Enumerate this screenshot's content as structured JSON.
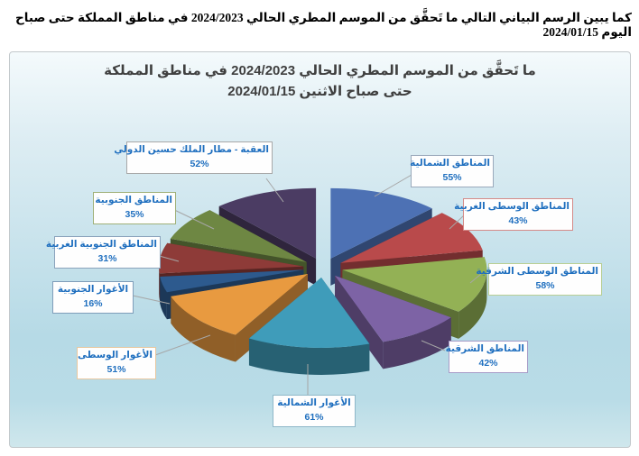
{
  "page": {
    "header": "كما يبين الرسم البياني التالي ما تَحقَّق من الموسم المطري الحالي 2024/2023 في مناطق المملكة حتى صباح اليوم 2024/01/15"
  },
  "chart": {
    "title_line1": "ما تَحقَّق من الموسم المطري الحالي 2024/2023 في مناطق المملكة",
    "title_line2": "حتى صباح الاثنين 2024/01/15",
    "title_color": "#3F3F3F"
  },
  "chart_data": {
    "type": "pie",
    "style": "3d-exploded",
    "title": "ما تَحقَّق من الموسم المطري الحالي 2024/2023 في مناطق المملكة حتى صباح الاثنين 2024/01/15",
    "unit": "%",
    "legend_position": "callout-labels",
    "categories": [
      "المناطق الشمالية",
      "المناطق الوسطى الغربية",
      "المناطق الوسطى الشرقية",
      "المناطق الشرقية",
      "الأغوار الشمالية",
      "الأغوار الوسطى",
      "الأغوار الجنوبية",
      "المناطق الجنوبية الغربية",
      "المناطق الجنوبية",
      "العقبة - مطار الملك حسين الدولي"
    ],
    "values": [
      55,
      43,
      58,
      42,
      61,
      51,
      16,
      31,
      35,
      52
    ],
    "value_labels": [
      "55%",
      "43%",
      "58%",
      "42%",
      "61%",
      "51%",
      "16%",
      "31%",
      "35%",
      "52%"
    ],
    "colors": [
      "#4D71B4",
      "#B94A4B",
      "#93B155",
      "#7D63A5",
      "#3F9CBA",
      "#E89A40",
      "#2D5A8E",
      "#8E3B38",
      "#6E8743",
      "#4B3C63"
    ],
    "callout_border_colors": [
      "#9AA9BB",
      "#D58A88",
      "#B9CF94",
      "#A79CC8",
      "#8FB8C9",
      "#E8C79E",
      "#7F9DB9",
      "#8BA3BC",
      "#9FB078",
      "#A8A8A8"
    ],
    "callout_text_color": "#1F6FBF",
    "leader_line_color": "#A6A6A6"
  }
}
